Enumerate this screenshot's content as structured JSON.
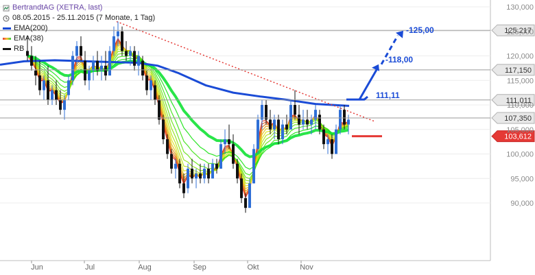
{
  "chart_data": {
    "type": "candlestick",
    "title": "BertrandtAG (XETRA, last)",
    "period": "08.05.2015 - 25.11.2015 (7 Monate, 1 Tag)",
    "legend": [
      {
        "name": "EMA(200)",
        "color": "#1a4bd6"
      },
      {
        "name": "EMA(38)",
        "color": "#2ecc40"
      },
      {
        "name": "RB",
        "color": "#111111"
      }
    ],
    "x_ticks": [
      "Jun",
      "Jul",
      "Aug",
      "Sep",
      "Okt",
      "Nov"
    ],
    "y_ticks": [
      "130,000",
      "125,000",
      "120,000",
      "115,000",
      "110,000",
      "105,000",
      "100,000",
      "95,000",
      "90,000"
    ],
    "ylim": [
      86.5,
      131
    ],
    "hlines": [
      {
        "value": 125.217,
        "label": "125,217",
        "style": "gray"
      },
      {
        "value": 117.15,
        "label": "117,150",
        "style": "gray"
      },
      {
        "value": 111.011,
        "label": "111,011",
        "style": "gray"
      },
      {
        "value": 107.35,
        "label": "107,350",
        "style": "gray"
      },
      {
        "value": 103.612,
        "label": "103,612",
        "style": "red"
      }
    ],
    "annotations": [
      "111,11",
      "118,00",
      "125,00"
    ],
    "ema200": [
      [
        0,
        118.2
      ],
      [
        35,
        118.9
      ],
      [
        80,
        119.1
      ],
      [
        150,
        118.8
      ],
      [
        200,
        118.6
      ],
      [
        230,
        118.0
      ],
      [
        260,
        116.5
      ],
      [
        300,
        114.0
      ],
      [
        340,
        112.5
      ],
      [
        380,
        111.7
      ],
      [
        420,
        111.0
      ],
      [
        460,
        110.2
      ],
      [
        509,
        109.8
      ]
    ],
    "resistance": [
      [
        170,
        127
      ],
      [
        547,
        106.6
      ]
    ],
    "candles": [
      [
        40,
        121,
        124,
        119,
        120
      ],
      [
        46,
        120,
        122,
        117,
        118
      ],
      [
        52,
        117,
        120,
        114,
        116
      ],
      [
        58,
        116,
        119,
        112,
        113
      ],
      [
        64,
        113,
        116,
        111,
        115
      ],
      [
        70,
        115,
        118,
        110,
        111
      ],
      [
        76,
        111,
        114,
        110,
        113
      ],
      [
        82,
        113,
        115,
        110,
        111
      ],
      [
        88,
        111,
        113,
        108,
        109
      ],
      [
        94,
        109,
        112,
        107,
        111
      ],
      [
        100,
        112,
        116,
        111,
        115
      ],
      [
        106,
        115,
        121,
        114,
        120
      ],
      [
        112,
        120,
        123,
        118,
        122
      ],
      [
        118,
        122,
        124,
        119,
        120
      ],
      [
        124,
        119,
        121,
        114,
        115
      ],
      [
        130,
        115,
        118,
        113,
        117
      ],
      [
        136,
        117,
        120,
        115,
        119
      ],
      [
        142,
        119,
        121,
        116,
        117
      ],
      [
        148,
        117,
        120,
        115,
        118
      ],
      [
        154,
        118,
        121,
        115,
        116
      ],
      [
        160,
        116,
        122,
        116,
        121
      ],
      [
        166,
        121,
        126,
        120,
        124
      ],
      [
        172,
        124,
        127,
        122,
        125
      ],
      [
        178,
        125,
        126,
        120,
        121
      ],
      [
        184,
        121,
        123,
        119,
        120
      ],
      [
        190,
        120,
        122,
        118,
        121
      ],
      [
        196,
        121,
        122,
        117,
        118
      ],
      [
        202,
        118,
        121,
        116,
        120
      ],
      [
        208,
        119,
        120,
        115,
        116
      ],
      [
        214,
        116,
        117,
        112,
        113
      ],
      [
        220,
        113,
        116,
        111,
        115
      ],
      [
        226,
        114,
        115,
        110,
        111
      ],
      [
        232,
        111,
        112,
        106,
        107
      ],
      [
        238,
        107,
        108,
        102,
        103
      ],
      [
        244,
        103,
        104,
        99,
        100
      ],
      [
        250,
        100,
        101,
        96,
        97
      ],
      [
        256,
        97,
        99,
        95,
        98
      ],
      [
        262,
        98,
        99,
        93,
        94
      ],
      [
        268,
        94,
        96,
        91,
        92
      ],
      [
        274,
        93,
        98,
        92,
        97
      ],
      [
        280,
        97,
        99,
        94,
        95
      ],
      [
        286,
        95,
        97,
        93,
        96
      ],
      [
        292,
        96,
        98,
        94,
        95
      ],
      [
        298,
        95,
        98,
        94,
        97
      ],
      [
        304,
        97,
        98,
        94,
        95
      ],
      [
        310,
        95,
        99,
        95,
        98
      ],
      [
        316,
        98,
        99,
        96,
        97
      ],
      [
        322,
        97,
        103,
        97,
        102
      ],
      [
        328,
        102,
        105,
        100,
        103
      ],
      [
        334,
        103,
        106,
        101,
        102
      ],
      [
        340,
        102,
        104,
        97,
        98
      ],
      [
        346,
        98,
        99,
        94,
        95
      ],
      [
        352,
        95,
        96,
        90,
        91
      ],
      [
        358,
        91,
        92,
        88,
        89
      ],
      [
        364,
        89,
        95,
        89,
        94
      ],
      [
        370,
        94,
        102,
        94,
        101
      ],
      [
        376,
        101,
        108,
        100,
        107
      ],
      [
        382,
        107,
        111,
        105,
        110
      ],
      [
        388,
        110,
        111,
        106,
        107
      ],
      [
        394,
        107,
        109,
        104,
        105
      ],
      [
        400,
        105,
        108,
        103,
        107
      ],
      [
        406,
        107,
        108,
        102,
        103
      ],
      [
        412,
        103,
        107,
        102,
        106
      ],
      [
        418,
        106,
        108,
        104,
        105
      ],
      [
        424,
        105,
        111,
        105,
        110
      ],
      [
        430,
        110,
        113,
        107,
        108
      ],
      [
        436,
        108,
        110,
        104,
        106
      ],
      [
        442,
        106,
        109,
        105,
        107
      ],
      [
        448,
        107,
        109,
        105,
        106
      ],
      [
        454,
        106,
        108,
        104,
        107
      ],
      [
        460,
        107,
        110,
        105,
        109
      ],
      [
        466,
        108,
        109,
        104,
        105
      ],
      [
        472,
        105,
        106,
        101,
        102
      ],
      [
        478,
        102,
        104,
        100,
        103
      ],
      [
        484,
        103,
        104,
        99,
        100
      ],
      [
        490,
        100,
        106,
        100,
        105
      ],
      [
        496,
        105,
        110,
        104,
        109
      ],
      [
        502,
        109,
        110,
        105,
        106
      ],
      [
        508,
        106,
        108,
        104,
        107
      ]
    ]
  }
}
